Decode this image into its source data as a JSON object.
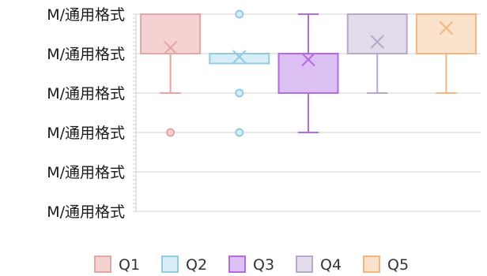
{
  "chart_data": {
    "type": "boxplot",
    "y_tick_labels": [
      "M/通用格式",
      "M/通用格式",
      "M/通用格式",
      "M/通用格式",
      "M/通用格式",
      "M/通用格式"
    ],
    "y_ticks": [
      5,
      4,
      3,
      2,
      1,
      0
    ],
    "ylim": [
      0,
      5
    ],
    "gridlines": true,
    "legend_position": "bottom",
    "series": [
      {
        "name": "Q1",
        "color": "#e8a3a3",
        "fill": "#f4d2d2",
        "whisker_low": 3,
        "q1": 4,
        "median": 5,
        "q3": 5,
        "whisker_high": 5,
        "mean": 4.15,
        "outliers": [
          2
        ]
      },
      {
        "name": "Q2",
        "color": "#93cbe0",
        "fill": "#d7eef6",
        "whisker_low": 3.75,
        "q1": 3.75,
        "median": 4,
        "q3": 4,
        "whisker_high": 4,
        "mean": 3.92,
        "outliers": [
          5,
          3,
          2
        ]
      },
      {
        "name": "Q3",
        "color": "#b46ae3",
        "fill": "#dcc0f3",
        "whisker_low": 2,
        "q1": 3,
        "median": 4,
        "q3": 4,
        "whisker_high": 5,
        "mean": 3.85,
        "outliers": []
      },
      {
        "name": "Q4",
        "color": "#b7a8cc",
        "fill": "#e2dbe9",
        "whisker_low": 3,
        "q1": 4,
        "median": 4,
        "q3": 5,
        "whisker_high": 5,
        "mean": 4.3,
        "outliers": []
      },
      {
        "name": "Q5",
        "color": "#f6b47e",
        "fill": "#fbe2cc",
        "whisker_low": 3,
        "q1": 4,
        "median": 5,
        "q3": 5,
        "whisker_high": 5,
        "mean": 4.65,
        "outliers": []
      }
    ]
  }
}
